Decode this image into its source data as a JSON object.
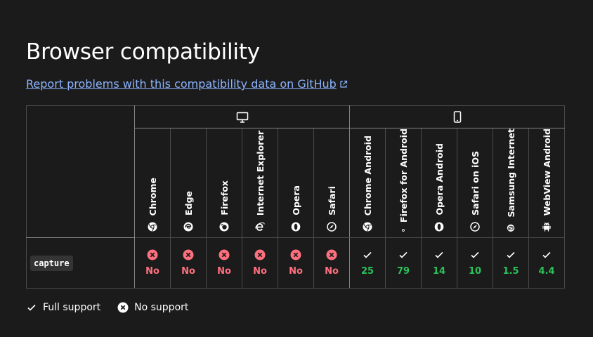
{
  "page": {
    "title": "Browser compatibility",
    "report_link": "Report problems with this compatibility data on GitHub"
  },
  "platforms": [
    {
      "name": "desktop",
      "icon": "desktop-icon"
    },
    {
      "name": "mobile",
      "icon": "mobile-icon"
    }
  ],
  "browsers": [
    {
      "label": "Chrome",
      "icon": "chrome-icon"
    },
    {
      "label": "Edge",
      "icon": "edge-icon"
    },
    {
      "label": "Firefox",
      "icon": "firefox-icon"
    },
    {
      "label": "Internet Explorer",
      "icon": "ie-icon"
    },
    {
      "label": "Opera",
      "icon": "opera-icon"
    },
    {
      "label": "Safari",
      "icon": "safari-icon"
    },
    {
      "label": "Chrome Android",
      "icon": "chrome-icon"
    },
    {
      "label": "Firefox for Android",
      "icon": "firefox-icon"
    },
    {
      "label": "Opera Android",
      "icon": "opera-icon"
    },
    {
      "label": "Safari on iOS",
      "icon": "safari-icon"
    },
    {
      "label": "Samsung Internet",
      "icon": "samsung-internet-icon"
    },
    {
      "label": "WebView Android",
      "icon": "android-icon"
    }
  ],
  "feature": {
    "name": "capture",
    "support": [
      "No",
      "No",
      "No",
      "No",
      "No",
      "No",
      "25",
      "79",
      "14",
      "10",
      "1.5",
      "4.4"
    ]
  },
  "legend": {
    "full_support": "Full support",
    "no_support": "No support"
  },
  "colors": {
    "background": "#1b1b1b",
    "link": "#8cb4ff",
    "no": "#ff707f",
    "yes": "#2cc15a"
  }
}
